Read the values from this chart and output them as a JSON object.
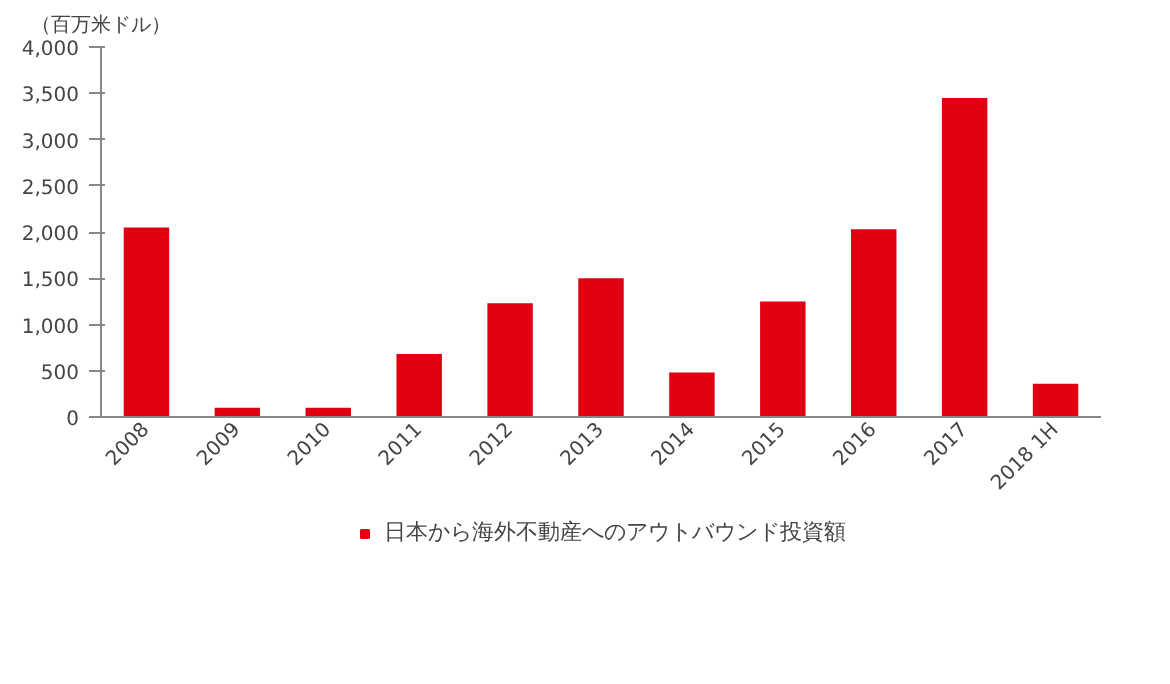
{
  "chart_data": {
    "type": "bar",
    "ylabel": "（百万米ドル）",
    "categories": [
      "2008",
      "2009",
      "2010",
      "2011",
      "2012",
      "2013",
      "2014",
      "2015",
      "2016",
      "2017",
      "2018 1H"
    ],
    "series": [
      {
        "name": "日本から海外不動産へのアウトバウンド投資額",
        "color": "#e00012",
        "values": [
          2050,
          100,
          100,
          680,
          1230,
          1500,
          480,
          1250,
          2030,
          3450,
          360
        ]
      }
    ],
    "ylim": [
      0,
      4000
    ],
    "yticks": [
      0,
      {
        "value": 500,
        "label": "500"
      },
      {
        "value": 1000,
        "label": "1,000"
      },
      {
        "value": 1500,
        "label": "1,500"
      },
      {
        "value": 2000,
        "label": "2,000"
      },
      {
        "value": 2500,
        "label": "2,500"
      },
      {
        "value": 3000,
        "label": "3,000"
      },
      {
        "value": 3500,
        "label": "3,500"
      },
      {
        "value": 4000,
        "label": "4,000"
      }
    ],
    "grid": false,
    "legend": "bottom"
  }
}
